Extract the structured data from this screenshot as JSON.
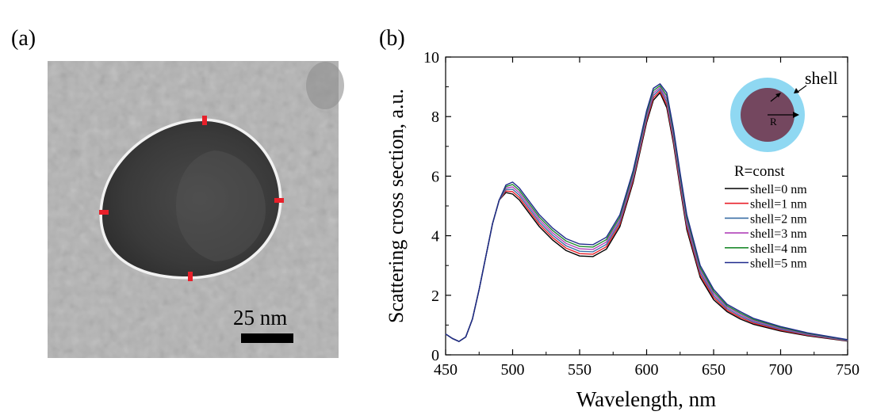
{
  "panels": {
    "a": {
      "label": "(a)",
      "scale_bar_text": "25 nm",
      "marker_color": "#e8202a"
    },
    "b": {
      "label": "(b)"
    }
  },
  "inset": {
    "shell_label": "shell",
    "radius_label": "R",
    "shell_color": "#8fd8f2",
    "core_color": "#74475f"
  },
  "chart_data": {
    "type": "line",
    "xlabel": "Wavelength, nm",
    "ylabel": "Scattering cross section, a.u.",
    "xlim": [
      450,
      750
    ],
    "ylim": [
      0,
      10
    ],
    "xticks": [
      450,
      500,
      550,
      600,
      650,
      700,
      750
    ],
    "yticks": [
      0,
      2,
      4,
      6,
      8,
      10
    ],
    "grid": false,
    "legend": {
      "title": "R=const",
      "position": "right"
    },
    "x": [
      450,
      455,
      460,
      465,
      470,
      475,
      480,
      485,
      490,
      495,
      500,
      505,
      510,
      520,
      530,
      540,
      550,
      560,
      570,
      580,
      590,
      600,
      605,
      610,
      615,
      620,
      625,
      630,
      640,
      650,
      660,
      670,
      680,
      700,
      720,
      750
    ],
    "series": [
      {
        "name": "shell=0 nm",
        "color": "#000000",
        "values": [
          0.7,
          0.55,
          0.45,
          0.6,
          1.2,
          2.2,
          3.3,
          4.4,
          5.2,
          5.45,
          5.4,
          5.2,
          4.9,
          4.3,
          3.85,
          3.5,
          3.32,
          3.3,
          3.55,
          4.3,
          5.8,
          7.8,
          8.55,
          8.8,
          8.3,
          7.1,
          5.6,
          4.2,
          2.6,
          1.85,
          1.45,
          1.2,
          1.02,
          0.8,
          0.64,
          0.46
        ]
      },
      {
        "name": "shell=1 nm",
        "color": "#e8202a",
        "values": [
          0.7,
          0.55,
          0.45,
          0.6,
          1.2,
          2.2,
          3.3,
          4.4,
          5.2,
          5.5,
          5.48,
          5.28,
          4.98,
          4.38,
          3.93,
          3.58,
          3.4,
          3.38,
          3.63,
          4.38,
          5.88,
          7.88,
          8.63,
          8.86,
          8.4,
          7.2,
          5.7,
          4.3,
          2.68,
          1.92,
          1.5,
          1.25,
          1.06,
          0.83,
          0.66,
          0.47
        ]
      },
      {
        "name": "shell=2 nm",
        "color": "#3a6ea5",
        "values": [
          0.7,
          0.55,
          0.45,
          0.6,
          1.2,
          2.2,
          3.3,
          4.4,
          5.2,
          5.55,
          5.56,
          5.36,
          5.06,
          4.46,
          4.01,
          3.66,
          3.48,
          3.46,
          3.71,
          4.46,
          5.96,
          7.96,
          8.71,
          8.92,
          8.5,
          7.3,
          5.8,
          4.4,
          2.76,
          1.99,
          1.55,
          1.3,
          1.1,
          0.86,
          0.68,
          0.48
        ]
      },
      {
        "name": "shell=3 nm",
        "color": "#b040b8",
        "values": [
          0.7,
          0.55,
          0.45,
          0.6,
          1.2,
          2.2,
          3.3,
          4.4,
          5.2,
          5.6,
          5.64,
          5.44,
          5.14,
          4.54,
          4.09,
          3.74,
          3.56,
          3.54,
          3.79,
          4.54,
          6.04,
          8.04,
          8.79,
          8.98,
          8.6,
          7.4,
          5.9,
          4.5,
          2.84,
          2.06,
          1.6,
          1.35,
          1.14,
          0.89,
          0.7,
          0.49
        ]
      },
      {
        "name": "shell=4 nm",
        "color": "#1e8a2e",
        "values": [
          0.7,
          0.55,
          0.45,
          0.6,
          1.2,
          2.2,
          3.3,
          4.4,
          5.2,
          5.65,
          5.72,
          5.52,
          5.22,
          4.62,
          4.17,
          3.82,
          3.64,
          3.62,
          3.87,
          4.62,
          6.12,
          8.12,
          8.87,
          9.04,
          8.7,
          7.5,
          6.0,
          4.6,
          2.92,
          2.13,
          1.65,
          1.4,
          1.18,
          0.92,
          0.72,
          0.5
        ]
      },
      {
        "name": "shell=5 nm",
        "color": "#1f2a8c",
        "values": [
          0.7,
          0.55,
          0.45,
          0.6,
          1.2,
          2.2,
          3.3,
          4.4,
          5.2,
          5.7,
          5.8,
          5.6,
          5.3,
          4.7,
          4.25,
          3.9,
          3.72,
          3.7,
          3.95,
          4.7,
          6.2,
          8.2,
          8.95,
          9.1,
          8.8,
          7.6,
          6.1,
          4.7,
          3.0,
          2.2,
          1.7,
          1.45,
          1.22,
          0.95,
          0.74,
          0.51
        ]
      }
    ]
  }
}
